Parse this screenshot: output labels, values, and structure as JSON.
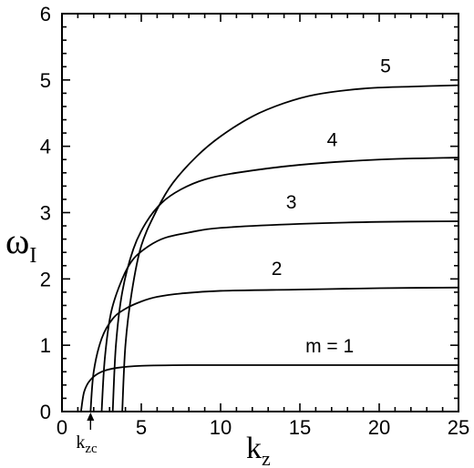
{
  "chart_data": {
    "type": "line",
    "xlabel": "k",
    "xlabel_sub": "z",
    "ylabel": "ω",
    "ylabel_sub": "I",
    "xlim": [
      0,
      25
    ],
    "ylim": [
      0,
      6
    ],
    "xticks": [
      0,
      5,
      10,
      15,
      20,
      25
    ],
    "yticks": [
      0,
      1,
      2,
      3,
      4,
      5,
      6
    ],
    "grid": false,
    "annotation": {
      "text": "k",
      "sub": "zc",
      "x": 1.8
    },
    "series": [
      {
        "name": "m = 1",
        "x": [
          1.2,
          1.4,
          1.8,
          2.5,
          3.5,
          5,
          8,
          12,
          18,
          25
        ],
        "y": [
          0,
          0.3,
          0.48,
          0.6,
          0.66,
          0.69,
          0.7,
          0.7,
          0.7,
          0.7
        ]
      },
      {
        "name": "2",
        "x": [
          1.8,
          2.0,
          2.5,
          3.2,
          4,
          5,
          6,
          7.5,
          10,
          15,
          20,
          25
        ],
        "y": [
          0,
          0.6,
          1.1,
          1.4,
          1.55,
          1.66,
          1.73,
          1.78,
          1.82,
          1.84,
          1.86,
          1.87
        ]
      },
      {
        "name": "3",
        "x": [
          2.5,
          2.7,
          3.1,
          3.8,
          4.5,
          5.5,
          6.5,
          8,
          10,
          15,
          20,
          25
        ],
        "y": [
          0,
          0.8,
          1.5,
          2.0,
          2.3,
          2.5,
          2.62,
          2.7,
          2.77,
          2.83,
          2.86,
          2.87
        ]
      },
      {
        "name": "4",
        "x": [
          3.2,
          3.4,
          3.8,
          4.5,
          5.3,
          6.3,
          7.5,
          9,
          11,
          15,
          20,
          25
        ],
        "y": [
          0,
          1.0,
          1.8,
          2.45,
          2.85,
          3.15,
          3.35,
          3.5,
          3.6,
          3.72,
          3.8,
          3.83
        ]
      },
      {
        "name": "5",
        "x": [
          3.8,
          4.0,
          4.4,
          5,
          6,
          7,
          8.5,
          10,
          12,
          14,
          16,
          19,
          22,
          25
        ],
        "y": [
          0,
          1.0,
          1.8,
          2.5,
          3.05,
          3.45,
          3.85,
          4.15,
          4.45,
          4.65,
          4.78,
          4.87,
          4.9,
          4.92
        ]
      }
    ]
  }
}
